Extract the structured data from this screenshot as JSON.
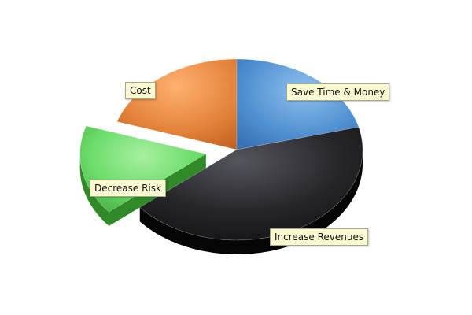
{
  "chart_data": {
    "type": "pie",
    "style": "3d-exploded",
    "title": "",
    "legend": "none",
    "slices": [
      {
        "label": "Save Time & Money",
        "value": 21,
        "color": "#4f8fd0"
      },
      {
        "label": "Increase Revenues",
        "value": 43,
        "color": "#2a2a2e"
      },
      {
        "label": "Decrease Risk",
        "value": 16,
        "color": "#5fd25f",
        "exploded": true
      },
      {
        "label": "Cost",
        "value": 20,
        "color": "#e8853e"
      }
    ]
  }
}
